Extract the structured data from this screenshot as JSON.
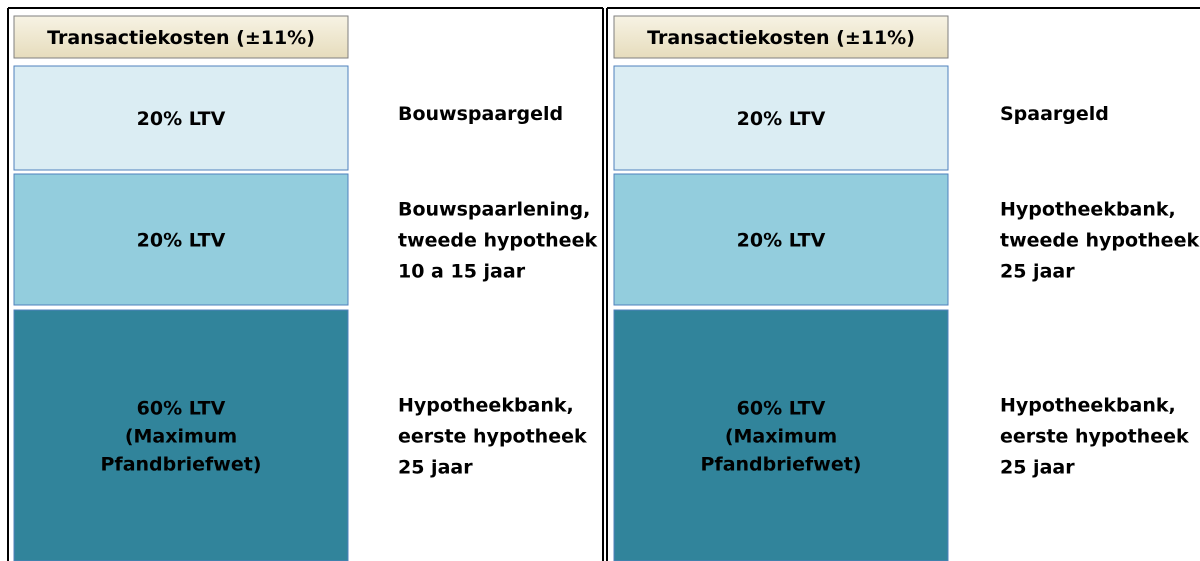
{
  "panels": [
    {
      "header": "Transactiekosten (±11%)",
      "blocks": [
        {
          "lines": [
            "20% LTV"
          ],
          "source": [
            "Bouwspaargeld"
          ]
        },
        {
          "lines": [
            "20% LTV"
          ],
          "source": [
            "Bouwspaarlening,",
            "tweede hypotheek",
            "10 a 15 jaar"
          ]
        },
        {
          "lines": [
            "60% LTV",
            "(Maximum",
            "Pfandbriefwet)"
          ],
          "source": [
            "Hypotheekbank,",
            "eerste hypotheek",
            "25 jaar"
          ]
        }
      ]
    },
    {
      "header": "Transactiekosten (±11%)",
      "blocks": [
        {
          "lines": [
            "20% LTV"
          ],
          "source": [
            "Spaargeld"
          ]
        },
        {
          "lines": [
            "20% LTV"
          ],
          "source": [
            "Hypotheekbank,",
            "tweede hypotheek",
            "25 jaar"
          ]
        },
        {
          "lines": [
            "60% LTV",
            "(Maximum",
            "Pfandbriefwet)"
          ],
          "source": [
            "Hypotheekbank,",
            "eerste hypotheek",
            "25 jaar"
          ]
        }
      ]
    }
  ]
}
